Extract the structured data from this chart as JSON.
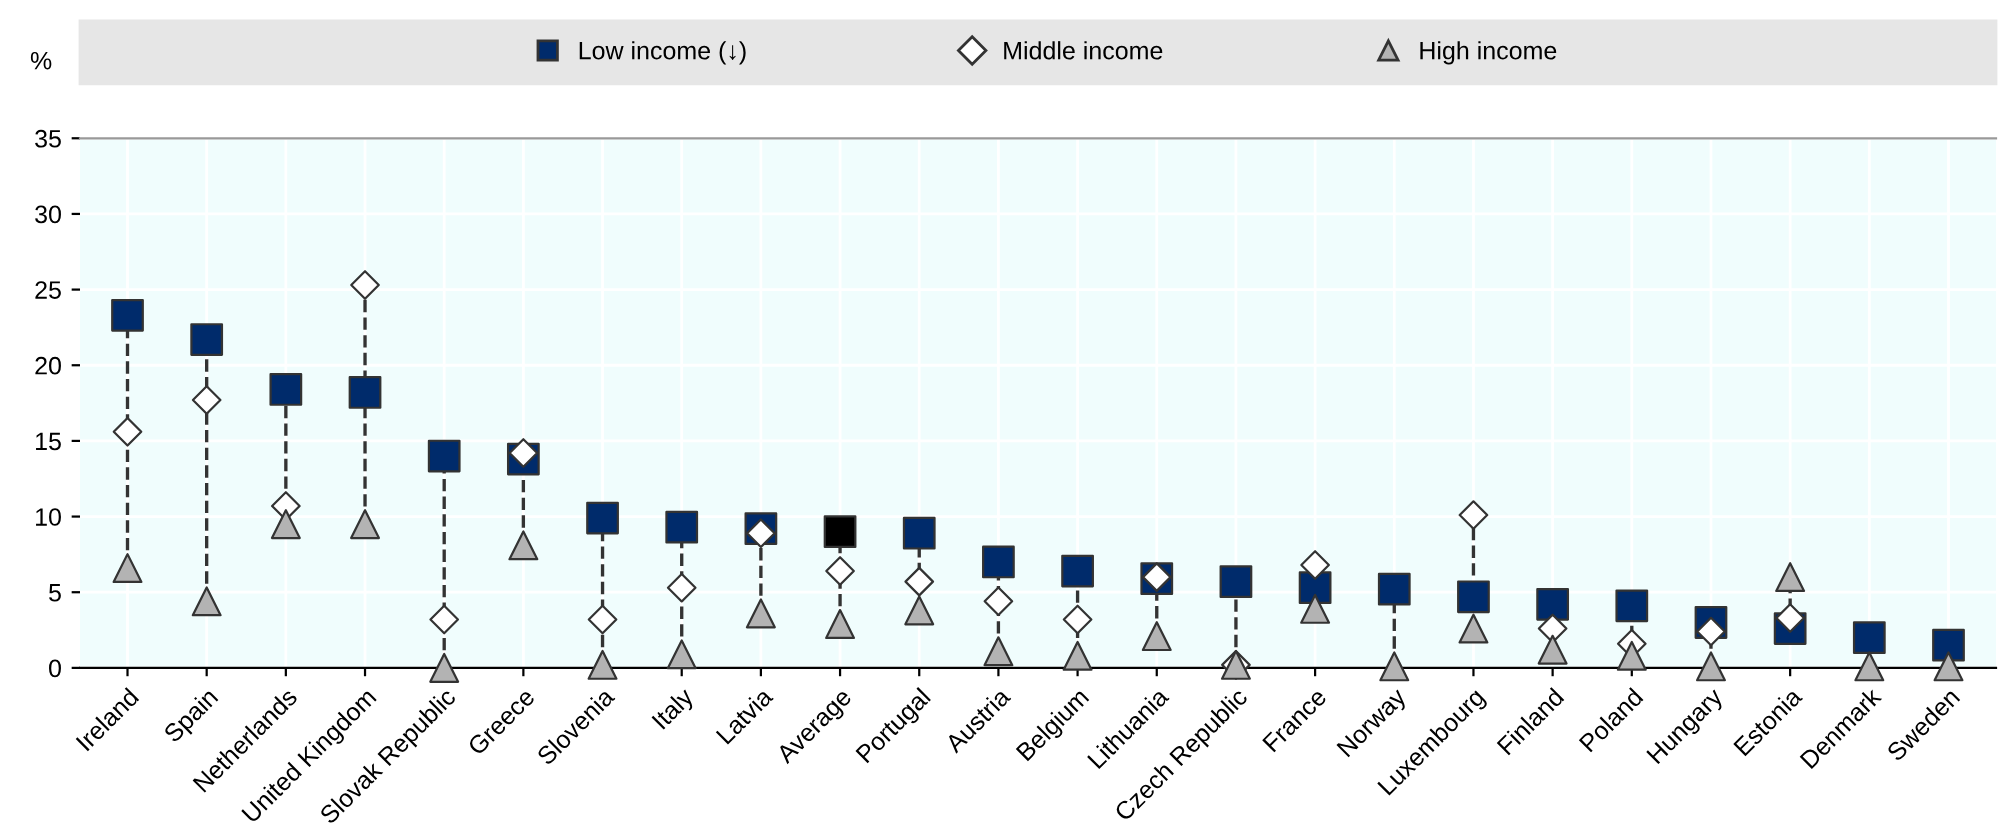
{
  "chart_data": {
    "type": "scatter",
    "ylabel": "%",
    "categories": [
      "Ireland",
      "Spain",
      "Netherlands",
      "United Kingdom",
      "Slovak Republic",
      "Greece",
      "Slovenia",
      "Italy",
      "Latvia",
      "Average",
      "Portugal",
      "Austria",
      "Belgium",
      "Lithuania",
      "Czech Republic",
      "France",
      "Norway",
      "Luxembourg",
      "Finland",
      "Poland",
      "Hungary",
      "Estonia",
      "Denmark",
      "Sweden"
    ],
    "series": [
      {
        "name": "Low income (↓)",
        "color": "#002b6b",
        "colors": [
          "#002b6b",
          "#002b6b",
          "#002b6b",
          "#002b6b",
          "#002b6b",
          "#002b6b",
          "#002b6b",
          "#002b6b",
          "#002b6b",
          "#000000",
          "#002b6b",
          "#002b6b",
          "#002b6b",
          "#002b6b",
          "#002b6b",
          "#002b6b",
          "#002b6b",
          "#002b6b",
          "#002b6b",
          "#002b6b",
          "#002b6b",
          "#002b6b",
          "#002b6b",
          "#002b6b"
        ],
        "marker": "square",
        "values": [
          23.3,
          21.7,
          18.4,
          18.2,
          14.0,
          13.8,
          9.9,
          9.3,
          9.2,
          9.0,
          8.9,
          7.0,
          6.4,
          5.9,
          5.7,
          5.3,
          5.2,
          4.7,
          4.2,
          4.1,
          3.0,
          2.6,
          2.0,
          1.5
        ]
      },
      {
        "name": "Middle income",
        "color": "#ffffff",
        "marker": "diamond",
        "values": [
          15.6,
          17.7,
          10.7,
          25.3,
          3.2,
          14.2,
          3.2,
          5.3,
          8.9,
          6.4,
          5.7,
          4.4,
          3.2,
          6.0,
          0.2,
          6.8,
          null,
          10.1,
          2.6,
          1.6,
          2.4,
          3.3,
          null,
          null
        ]
      },
      {
        "name": "High income",
        "color": "#b3b3b3",
        "marker": "triangle",
        "values": [
          6.6,
          4.4,
          9.5,
          9.5,
          0.0,
          8.1,
          0.2,
          0.9,
          3.6,
          2.9,
          3.8,
          1.1,
          0.8,
          2.1,
          0.2,
          3.9,
          0.1,
          2.6,
          1.2,
          0.8,
          0.1,
          6.0,
          0.1,
          0.1
        ]
      }
    ],
    "ylim": [
      0,
      35
    ],
    "yticks": [
      0,
      5,
      10,
      15,
      20,
      25,
      30,
      35
    ],
    "grid": true,
    "legend": "top",
    "line_style": "dashed"
  }
}
